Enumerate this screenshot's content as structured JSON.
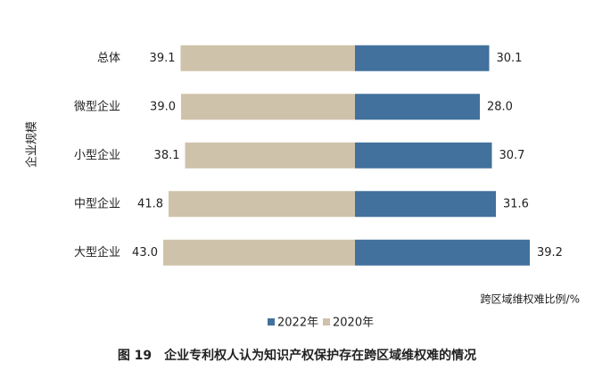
{
  "chart_data": {
    "type": "diverging-bar",
    "title": "图 19　企业专利权人认为知识产权保护存在跨区域维权难的情况",
    "x_label": "跨区域维权难比例/%",
    "y_label": "企业规模",
    "categories": [
      "总体",
      "微型企业",
      "小型企业",
      "中型企业",
      "大型企业"
    ],
    "series": [
      {
        "name": "2022年",
        "color": "#41719c",
        "side": "right",
        "values": [
          30.1,
          28.0,
          30.7,
          31.6,
          39.2
        ],
        "value_labels": [
          "30.1",
          "28.0",
          "30.7",
          "31.6",
          "39.2"
        ]
      },
      {
        "name": "2020年",
        "color": "#cfc2aa",
        "side": "left",
        "values": [
          39.1,
          39.0,
          38.1,
          41.8,
          43.0
        ],
        "value_labels": [
          "39.1",
          "39.0",
          "38.1",
          "41.8",
          "43.0"
        ]
      }
    ]
  }
}
